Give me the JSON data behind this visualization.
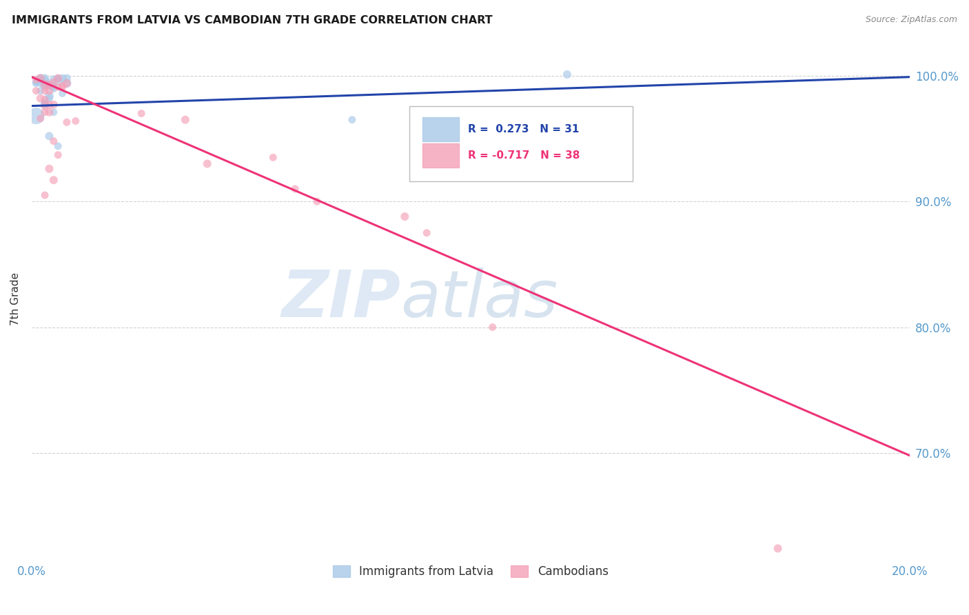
{
  "title": "IMMIGRANTS FROM LATVIA VS CAMBODIAN 7TH GRADE CORRELATION CHART",
  "source": "Source: ZipAtlas.com",
  "ylabel": "7th Grade",
  "ytick_labels": [
    "100.0%",
    "90.0%",
    "80.0%",
    "70.0%"
  ],
  "ytick_values": [
    1.0,
    0.9,
    0.8,
    0.7
  ],
  "xlim": [
    0.0,
    0.2
  ],
  "ylim": [
    0.615,
    1.03
  ],
  "legend_r1": "R =  0.273",
  "legend_n1": "N = 31",
  "legend_r2": "R = -0.717",
  "legend_n2": "N = 38",
  "blue_color": "#a8c8e8",
  "pink_color": "#f4a0b8",
  "line_blue": "#2244aa",
  "line_pink": "#ee3377",
  "watermark_zip": "ZIP",
  "watermark_atlas": "atlas",
  "blue_scatter_x": [
    0.001,
    0.002,
    0.003,
    0.004,
    0.005,
    0.006,
    0.007,
    0.008,
    0.002,
    0.003,
    0.004,
    0.003,
    0.005,
    0.006,
    0.004,
    0.001,
    0.003,
    0.005,
    0.007,
    0.004,
    0.006,
    0.005,
    0.003,
    0.008,
    0.002,
    0.004,
    0.003,
    0.002,
    0.001,
    0.122,
    0.073
  ],
  "blue_scatter_y": [
    0.995,
    0.998,
    0.995,
    0.993,
    0.991,
    0.996,
    0.998,
    0.994,
    0.988,
    0.978,
    0.982,
    0.992,
    0.997,
    0.998,
    0.984,
    0.968,
    0.978,
    0.99,
    0.986,
    0.952,
    0.944,
    0.971,
    0.977,
    0.998,
    0.994,
    0.992,
    0.998,
    0.997,
    0.994,
    1.001,
    0.965
  ],
  "blue_scatter_size": [
    25,
    35,
    50,
    30,
    25,
    40,
    30,
    35,
    25,
    30,
    25,
    35,
    30,
    25,
    35,
    120,
    25,
    30,
    25,
    30,
    25,
    25,
    25,
    30,
    25,
    25,
    30,
    25,
    25,
    30,
    25
  ],
  "pink_scatter_x": [
    0.001,
    0.002,
    0.003,
    0.004,
    0.005,
    0.006,
    0.007,
    0.002,
    0.003,
    0.004,
    0.003,
    0.005,
    0.006,
    0.004,
    0.002,
    0.003,
    0.005,
    0.004,
    0.006,
    0.005,
    0.003,
    0.001,
    0.008,
    0.007,
    0.004,
    0.003,
    0.035,
    0.055,
    0.065,
    0.085,
    0.01,
    0.025,
    0.04,
    0.06,
    0.09,
    0.105,
    0.17,
    0.008
  ],
  "pink_scatter_y": [
    0.997,
    0.998,
    0.993,
    0.988,
    0.995,
    0.998,
    0.991,
    0.982,
    0.971,
    0.977,
    0.981,
    0.977,
    0.991,
    0.971,
    0.966,
    0.976,
    0.948,
    0.926,
    0.937,
    0.917,
    0.905,
    0.988,
    0.994,
    0.992,
    0.993,
    0.988,
    0.965,
    0.935,
    0.9,
    0.888,
    0.964,
    0.97,
    0.93,
    0.91,
    0.875,
    0.8,
    0.624,
    0.963
  ],
  "pink_scatter_size": [
    25,
    30,
    35,
    30,
    25,
    30,
    25,
    30,
    25,
    30,
    25,
    30,
    25,
    30,
    25,
    30,
    25,
    30,
    25,
    30,
    25,
    25,
    30,
    25,
    25,
    25,
    30,
    25,
    25,
    30,
    25,
    25,
    30,
    25,
    25,
    25,
    30,
    25
  ],
  "blue_trend_x": [
    0.0,
    0.2
  ],
  "blue_trend_y": [
    0.976,
    0.999
  ],
  "pink_trend_x": [
    0.0,
    0.2
  ],
  "pink_trend_y": [
    0.999,
    0.698
  ],
  "grid_color": "#cccccc",
  "bg_color": "#ffffff",
  "tick_color": "#5599cc",
  "ylabel_color": "#333333"
}
